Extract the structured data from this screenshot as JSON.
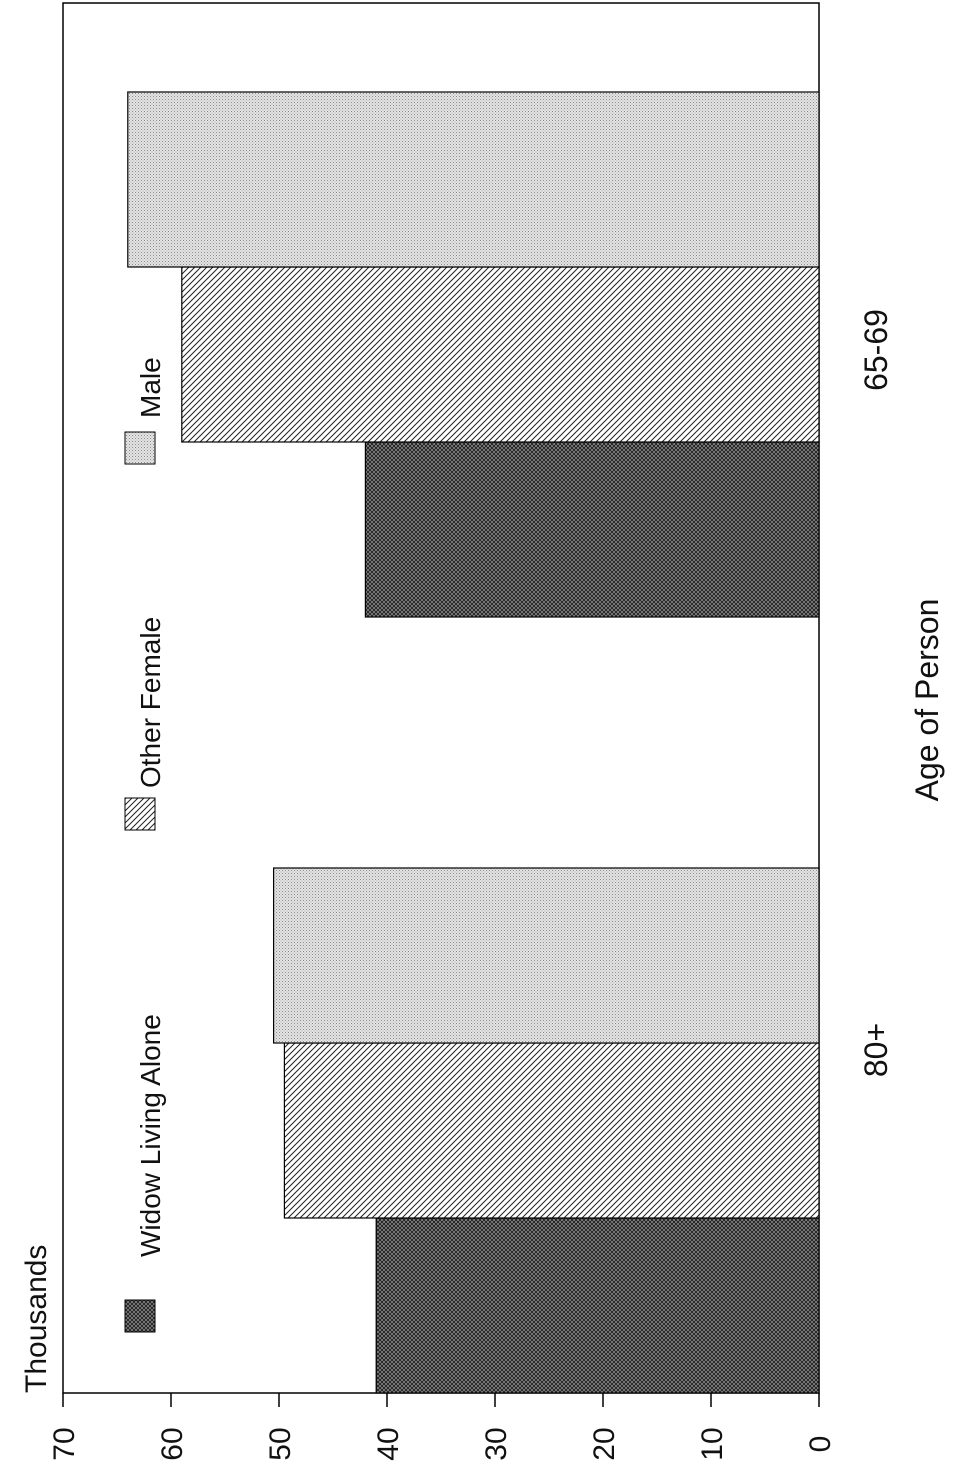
{
  "chart_data": {
    "type": "bar",
    "orientation": "rotated-90",
    "ylabel": "Thousands",
    "xlabel": "Age of Person",
    "categories": [
      "80+",
      "65-69"
    ],
    "series": [
      {
        "name": "Widow Living Alone",
        "values": [
          41,
          42
        ],
        "pattern": "crosshatch-dark"
      },
      {
        "name": "Other Female",
        "values": [
          49.5,
          59
        ],
        "pattern": "diagonal-hatch"
      },
      {
        "name": "Male",
        "values": [
          50.5,
          64
        ],
        "pattern": "light-dots"
      }
    ],
    "ylim": [
      0,
      70
    ],
    "yticks": [
      "0",
      "10",
      "20",
      "30",
      "40",
      "50",
      "60",
      "70"
    ],
    "grid": false,
    "legend_position": "top"
  }
}
